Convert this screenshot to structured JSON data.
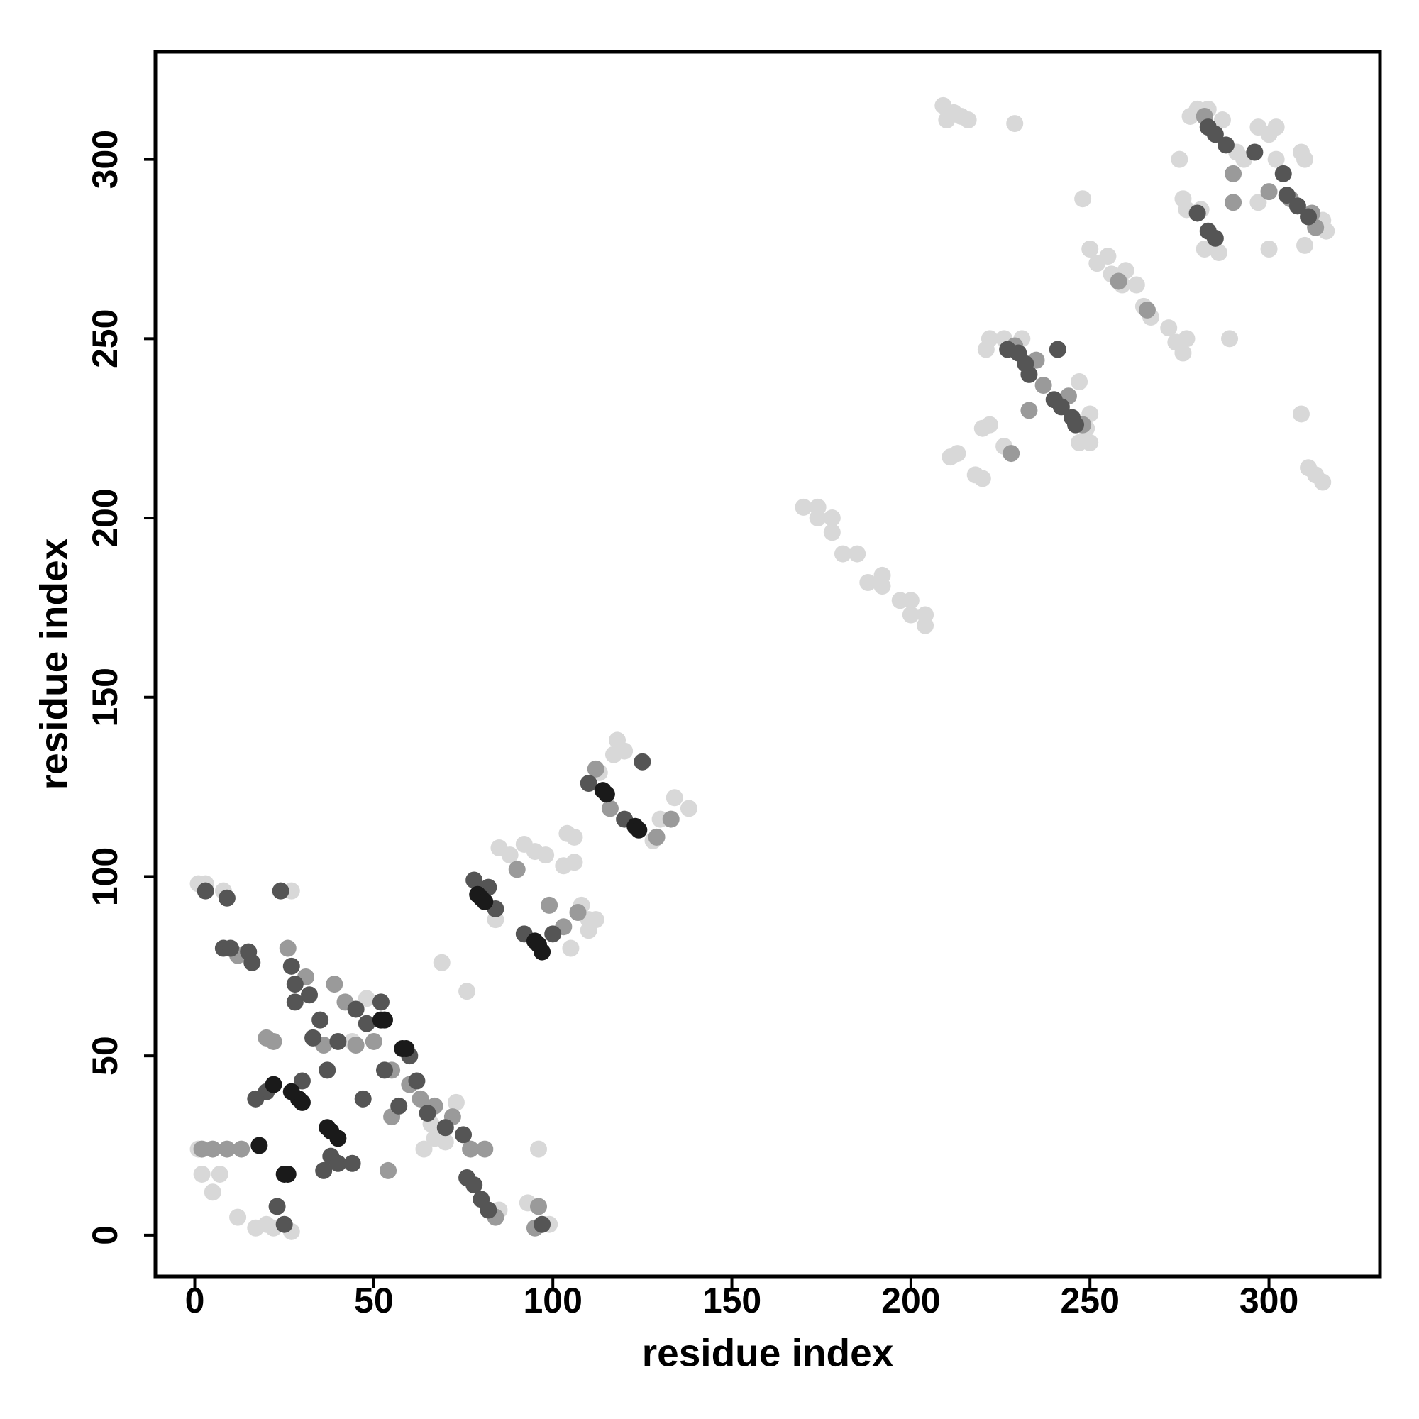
{
  "chart_data": {
    "type": "scatter",
    "x_label": "residue index",
    "y_label": "residue index",
    "xlim": [
      -11,
      331
    ],
    "ylim": [
      -11.5,
      330
    ],
    "xticks": [
      0,
      50,
      100,
      150,
      200,
      250,
      300
    ],
    "yticks": [
      0,
      50,
      100,
      150,
      200,
      250,
      300
    ],
    "series": [
      {
        "color": "#d8d8d8",
        "x": [
          1,
          3,
          1,
          2,
          5,
          7,
          8,
          12,
          17,
          20,
          22,
          27,
          27,
          48,
          44,
          64,
          67,
          66,
          70,
          73,
          69,
          76,
          85,
          93,
          96,
          99,
          85,
          88,
          92,
          95,
          98,
          84,
          104,
          106,
          103,
          106,
          108,
          110,
          110,
          112,
          105,
          113,
          117,
          118,
          120,
          130,
          134,
          138,
          128,
          170,
          174,
          174,
          178,
          178,
          181,
          185,
          188,
          192,
          192,
          197,
          200,
          200,
          204,
          204,
          209,
          212,
          214,
          216,
          210,
          220,
          222,
          213,
          211,
          218,
          220,
          221,
          222,
          226,
          229,
          231,
          226,
          249,
          250,
          247,
          250,
          247,
          248,
          250,
          252,
          255,
          256,
          260,
          259,
          263,
          265,
          267,
          272,
          274,
          276,
          277,
          275,
          276,
          277,
          281,
          280,
          283,
          287,
          291,
          293,
          297,
          300,
          302,
          302,
          297,
          300,
          310,
          309,
          310,
          289,
          309,
          311,
          313,
          315,
          315,
          314,
          316,
          278,
          282,
          286
        ],
        "values": [
          98,
          98,
          24,
          17,
          12,
          17,
          96,
          5,
          2,
          3,
          2,
          1,
          96,
          66,
          54,
          24,
          27,
          31,
          26,
          37,
          76,
          68,
          7,
          9,
          24,
          3,
          108,
          106,
          109,
          107,
          106,
          88,
          112,
          111,
          103,
          104,
          92,
          88,
          85,
          88,
          80,
          129,
          134,
          138,
          135,
          116,
          122,
          119,
          110,
          203,
          203,
          200,
          200,
          196,
          190,
          190,
          182,
          184,
          181,
          177,
          177,
          173,
          170,
          173,
          315,
          313,
          312,
          311,
          311,
          225,
          226,
          218,
          217,
          212,
          211,
          247,
          250,
          250,
          310,
          250,
          220,
          225,
          221,
          221,
          229,
          238,
          289,
          275,
          271,
          273,
          268,
          269,
          265,
          265,
          259,
          256,
          253,
          249,
          246,
          250,
          300,
          289,
          286,
          286,
          314,
          314,
          311,
          302,
          300,
          309,
          307,
          309,
          300,
          288,
          275,
          300,
          302,
          276,
          250,
          229,
          214,
          212,
          210,
          283,
          282,
          280,
          312,
          275,
          274
        ]
      },
      {
        "color": "#9a9a9a",
        "x": [
          2,
          5,
          9,
          13,
          12,
          20,
          22,
          26,
          31,
          36,
          39,
          42,
          45,
          50,
          55,
          60,
          63,
          67,
          72,
          77,
          81,
          84,
          95,
          96,
          54,
          55,
          90,
          99,
          103,
          107,
          112,
          116,
          129,
          133,
          229,
          235,
          237,
          244,
          248,
          258,
          266,
          282,
          290,
          300,
          306,
          313,
          312,
          290,
          228,
          233
        ],
        "values": [
          24,
          24,
          24,
          24,
          78,
          55,
          54,
          80,
          72,
          53,
          70,
          65,
          53,
          54,
          46,
          42,
          38,
          36,
          33,
          24,
          24,
          5,
          2,
          8,
          18,
          33,
          102,
          92,
          86,
          90,
          130,
          119,
          111,
          116,
          248,
          244,
          237,
          234,
          226,
          266,
          258,
          312,
          296,
          291,
          289,
          281,
          285,
          288,
          218,
          230
        ]
      },
      {
        "color": "#555555",
        "x": [
          8,
          10,
          15,
          16,
          27,
          28,
          32,
          35,
          40,
          45,
          48,
          52,
          60,
          62,
          65,
          70,
          75,
          76,
          78,
          80,
          82,
          25,
          23,
          36,
          38,
          40,
          44,
          47,
          37,
          20,
          17,
          30,
          28,
          33,
          78,
          82,
          84,
          92,
          100,
          110,
          125,
          120,
          227,
          230,
          233,
          232,
          240,
          242,
          245,
          246,
          241,
          283,
          285,
          288,
          305,
          308,
          311,
          283,
          285,
          280,
          304,
          296,
          3,
          9,
          24,
          97,
          53,
          57
        ],
        "values": [
          80,
          80,
          79,
          76,
          75,
          70,
          67,
          60,
          54,
          63,
          59,
          65,
          50,
          43,
          34,
          30,
          28,
          16,
          14,
          10,
          7,
          3,
          8,
          18,
          22,
          20,
          20,
          38,
          46,
          40,
          38,
          43,
          65,
          55,
          99,
          97,
          91,
          84,
          84,
          126,
          132,
          116,
          247,
          246,
          240,
          243,
          233,
          231,
          228,
          226,
          247,
          309,
          307,
          304,
          290,
          287,
          284,
          280,
          278,
          285,
          296,
          302,
          96,
          94,
          96,
          3,
          46,
          36
        ]
      },
      {
        "color": "#1a1a1a",
        "x": [
          25,
          26,
          18,
          22,
          30,
          29,
          37,
          38,
          52,
          53,
          58,
          59,
          79,
          80,
          81,
          95,
          96,
          97,
          114,
          115,
          123,
          124,
          27,
          40
        ],
        "values": [
          17,
          17,
          25,
          42,
          37,
          38,
          30,
          29,
          60,
          60,
          52,
          52,
          95,
          94,
          93,
          82,
          81,
          79,
          124,
          123,
          114,
          113,
          40,
          27
        ]
      }
    ]
  }
}
